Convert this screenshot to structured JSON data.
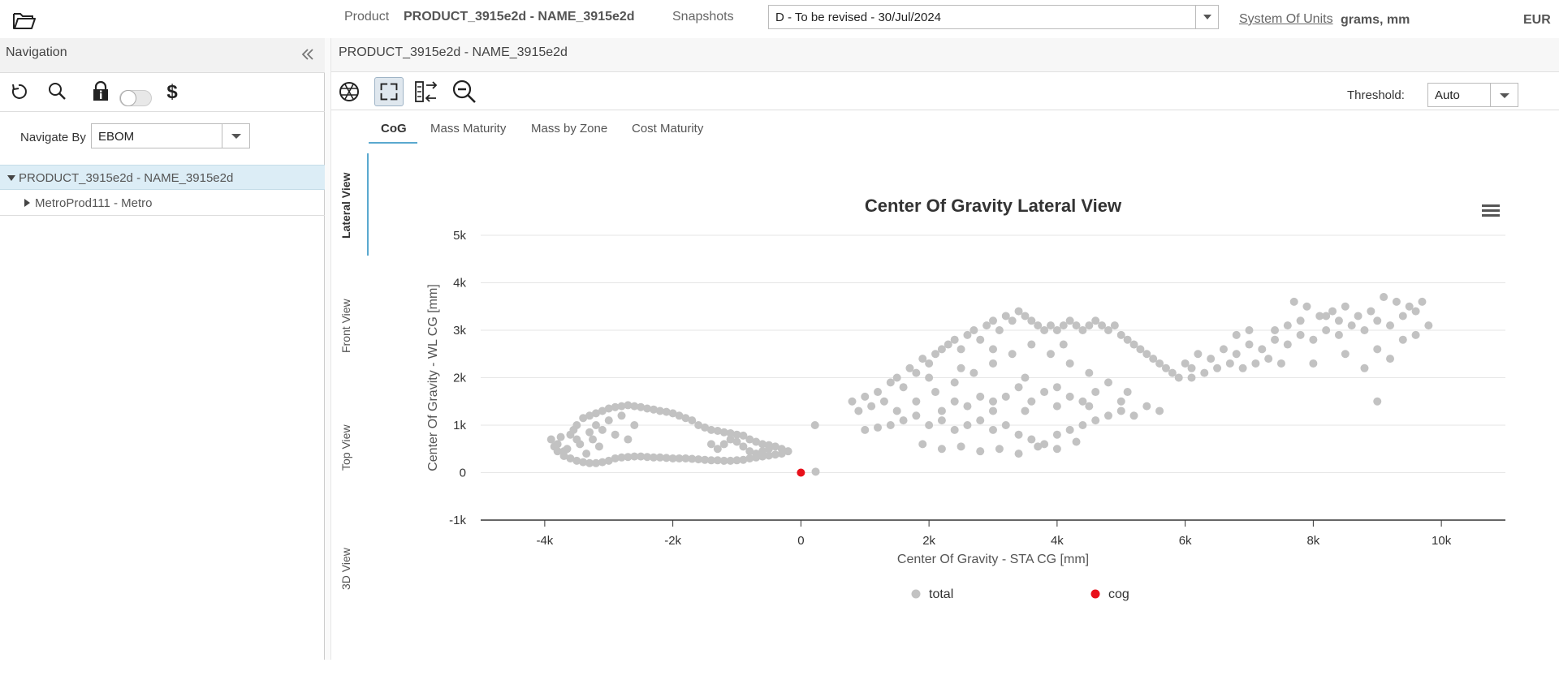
{
  "topbar": {
    "product_label": "Product",
    "product_value": "PRODUCT_3915e2d - NAME_3915e2d",
    "snapshots_label": "Snapshots",
    "snapshot_value": "D - To be revised - 30/Jul/2024",
    "system_of_units_link": "System Of Units",
    "units_value": "grams, mm",
    "currency": "EUR"
  },
  "nav": {
    "title": "Navigation",
    "navigate_by_label": "Navigate By",
    "navigate_by_value": "EBOM",
    "tree": [
      {
        "label": "PRODUCT_3915e2d - NAME_3915e2d",
        "expanded": true,
        "selected": true
      },
      {
        "label": "MetroProd111 - Metro",
        "expanded": false,
        "selected": false
      }
    ]
  },
  "main": {
    "title": "PRODUCT_3915e2d - NAME_3915e2d",
    "threshold_label": "Threshold:",
    "threshold_value": "Auto",
    "tabs": [
      "CoG",
      "Mass Maturity",
      "Mass by Zone",
      "Cost Maturity"
    ],
    "active_tab": "CoG",
    "views": [
      "Lateral View",
      "Front View",
      "Top View",
      "3D View"
    ],
    "active_view": "Lateral View"
  },
  "colors": {
    "accent": "#5aa9cf",
    "total_series": "#c2c2c2",
    "cog_series": "#e8101a"
  },
  "chart_data": {
    "type": "scatter",
    "title": "Center Of Gravity Lateral View",
    "xlabel": "Center Of Gravity - STA CG [mm]",
    "ylabel": "Center Of Gravity - WL CG [mm]",
    "xlim": [
      -5000,
      11000
    ],
    "ylim": [
      -1000,
      5000
    ],
    "x_ticks": [
      -4000,
      -2000,
      0,
      2000,
      4000,
      6000,
      8000,
      10000
    ],
    "x_tick_labels": [
      "-4k",
      "-2k",
      "0",
      "2k",
      "4k",
      "6k",
      "8k",
      "10k"
    ],
    "y_ticks": [
      -1000,
      0,
      1000,
      2000,
      3000,
      4000,
      5000
    ],
    "y_tick_labels": [
      "-1k",
      "0",
      "1k",
      "2k",
      "3k",
      "4k",
      "5k"
    ],
    "grid": "horizontal",
    "legend_position": "bottom-center",
    "series": [
      {
        "name": "total",
        "points": [
          [
            -3800,
            600
          ],
          [
            -3700,
            450
          ],
          [
            -3600,
            800
          ],
          [
            -3500,
            1000
          ],
          [
            -3400,
            1150
          ],
          [
            -3300,
            1200
          ],
          [
            -3200,
            1250
          ],
          [
            -3100,
            1300
          ],
          [
            -3000,
            1350
          ],
          [
            -2900,
            1380
          ],
          [
            -2800,
            1400
          ],
          [
            -2700,
            1420
          ],
          [
            -2600,
            1400
          ],
          [
            -2500,
            1380
          ],
          [
            -2400,
            1350
          ],
          [
            -2300,
            1330
          ],
          [
            -2200,
            1300
          ],
          [
            -2100,
            1280
          ],
          [
            -2000,
            1250
          ],
          [
            -1900,
            1200
          ],
          [
            -1800,
            1150
          ],
          [
            -1700,
            1100
          ],
          [
            -1600,
            1000
          ],
          [
            -1500,
            950
          ],
          [
            -1400,
            900
          ],
          [
            -1300,
            880
          ],
          [
            -1200,
            850
          ],
          [
            -1100,
            830
          ],
          [
            -1000,
            800
          ],
          [
            -900,
            780
          ],
          [
            -800,
            700
          ],
          [
            -700,
            650
          ],
          [
            -600,
            600
          ],
          [
            -500,
            580
          ],
          [
            -400,
            550
          ],
          [
            -300,
            500
          ],
          [
            -200,
            450
          ],
          [
            -3800,
            450
          ],
          [
            -3700,
            350
          ],
          [
            -3600,
            300
          ],
          [
            -3500,
            250
          ],
          [
            -3400,
            220
          ],
          [
            -3300,
            200
          ],
          [
            -3200,
            200
          ],
          [
            -3100,
            220
          ],
          [
            -3000,
            250
          ],
          [
            -2900,
            300
          ],
          [
            -2800,
            320
          ],
          [
            -2700,
            330
          ],
          [
            -2600,
            340
          ],
          [
            -2500,
            340
          ],
          [
            -2400,
            330
          ],
          [
            -2300,
            320
          ],
          [
            -2200,
            320
          ],
          [
            -2100,
            310
          ],
          [
            -2000,
            300
          ],
          [
            -1900,
            300
          ],
          [
            -1800,
            300
          ],
          [
            -1700,
            290
          ],
          [
            -1600,
            280
          ],
          [
            -1500,
            270
          ],
          [
            -1400,
            260
          ],
          [
            -1300,
            260
          ],
          [
            -1200,
            250
          ],
          [
            -1100,
            250
          ],
          [
            -1000,
            260
          ],
          [
            -900,
            270
          ],
          [
            -800,
            300
          ],
          [
            -700,
            320
          ],
          [
            -600,
            340
          ],
          [
            -500,
            360
          ],
          [
            -400,
            380
          ],
          [
            -300,
            400
          ],
          [
            -3500,
            700
          ],
          [
            -3300,
            850
          ],
          [
            -3200,
            1000
          ],
          [
            -3100,
            900
          ],
          [
            -3000,
            1100
          ],
          [
            -2900,
            800
          ],
          [
            -2800,
            1200
          ],
          [
            -2700,
            700
          ],
          [
            -2600,
            1000
          ],
          [
            -1200,
            600
          ],
          [
            -1100,
            700
          ],
          [
            -1000,
            650
          ],
          [
            -900,
            550
          ],
          [
            -800,
            450
          ],
          [
            -700,
            400
          ],
          [
            -600,
            450
          ],
          [
            -500,
            500
          ],
          [
            -1300,
            500
          ],
          [
            -1400,
            600
          ],
          [
            -3900,
            700
          ],
          [
            -3850,
            550
          ],
          [
            -3750,
            750
          ],
          [
            -3650,
            500
          ],
          [
            -3550,
            900
          ],
          [
            -3450,
            600
          ],
          [
            -3350,
            400
          ],
          [
            -3250,
            700
          ],
          [
            -3150,
            550
          ],
          [
            230,
            20
          ],
          [
            220,
            1000
          ],
          [
            800,
            1500
          ],
          [
            900,
            1300
          ],
          [
            1000,
            1600
          ],
          [
            1100,
            1400
          ],
          [
            1200,
            1700
          ],
          [
            1300,
            1500
          ],
          [
            1400,
            1900
          ],
          [
            1500,
            2000
          ],
          [
            1600,
            1800
          ],
          [
            1700,
            2200
          ],
          [
            1800,
            2100
          ],
          [
            1900,
            2400
          ],
          [
            2000,
            2300
          ],
          [
            2100,
            2500
          ],
          [
            2200,
            2600
          ],
          [
            2300,
            2700
          ],
          [
            2400,
            2800
          ],
          [
            2500,
            2600
          ],
          [
            2600,
            2900
          ],
          [
            2700,
            3000
          ],
          [
            2800,
            2800
          ],
          [
            2900,
            3100
          ],
          [
            3000,
            3200
          ],
          [
            3100,
            3000
          ],
          [
            3200,
            3300
          ],
          [
            3300,
            3200
          ],
          [
            3400,
            3400
          ],
          [
            3500,
            3300
          ],
          [
            3600,
            3200
          ],
          [
            3700,
            3100
          ],
          [
            3800,
            3000
          ],
          [
            3900,
            3100
          ],
          [
            4000,
            3000
          ],
          [
            4100,
            3100
          ],
          [
            4200,
            3200
          ],
          [
            4300,
            3100
          ],
          [
            4400,
            3000
          ],
          [
            4500,
            3100
          ],
          [
            4600,
            3200
          ],
          [
            4700,
            3100
          ],
          [
            4800,
            3000
          ],
          [
            4900,
            3100
          ],
          [
            5000,
            2900
          ],
          [
            5100,
            2800
          ],
          [
            5200,
            2700
          ],
          [
            5300,
            2600
          ],
          [
            5400,
            2500
          ],
          [
            5500,
            2400
          ],
          [
            5600,
            2300
          ],
          [
            5700,
            2200
          ],
          [
            5800,
            2100
          ],
          [
            5900,
            2000
          ],
          [
            6000,
            2300
          ],
          [
            6100,
            2200
          ],
          [
            1000,
            900
          ],
          [
            1200,
            950
          ],
          [
            1400,
            1000
          ],
          [
            1600,
            1100
          ],
          [
            1800,
            1200
          ],
          [
            2000,
            1000
          ],
          [
            2200,
            1100
          ],
          [
            2400,
            900
          ],
          [
            2600,
            1000
          ],
          [
            2800,
            1100
          ],
          [
            3000,
            900
          ],
          [
            3200,
            1000
          ],
          [
            3400,
            800
          ],
          [
            3600,
            700
          ],
          [
            3800,
            600
          ],
          [
            4000,
            800
          ],
          [
            4200,
            900
          ],
          [
            4400,
            1000
          ],
          [
            4600,
            1100
          ],
          [
            4800,
            1200
          ],
          [
            5000,
            1300
          ],
          [
            5200,
            1200
          ],
          [
            5400,
            1400
          ],
          [
            5600,
            1300
          ],
          [
            1500,
            1300
          ],
          [
            1800,
            1500
          ],
          [
            2100,
            1700
          ],
          [
            2400,
            1900
          ],
          [
            2700,
            2100
          ],
          [
            3000,
            2300
          ],
          [
            3300,
            2500
          ],
          [
            3600,
            2700
          ],
          [
            3900,
            2500
          ],
          [
            4200,
            2300
          ],
          [
            4500,
            2100
          ],
          [
            4800,
            1900
          ],
          [
            5100,
            1700
          ],
          [
            2000,
            2000
          ],
          [
            2500,
            2200
          ],
          [
            3000,
            2600
          ],
          [
            3500,
            2000
          ],
          [
            4000,
            1800
          ],
          [
            1900,
            600
          ],
          [
            2200,
            500
          ],
          [
            2500,
            550
          ],
          [
            2800,
            450
          ],
          [
            3100,
            500
          ],
          [
            3400,
            400
          ],
          [
            3700,
            550
          ],
          [
            4000,
            500
          ],
          [
            4300,
            650
          ],
          [
            3000,
            1500
          ],
          [
            3200,
            1600
          ],
          [
            3400,
            1800
          ],
          [
            3600,
            1500
          ],
          [
            3800,
            1700
          ],
          [
            4000,
            1400
          ],
          [
            4200,
            1600
          ],
          [
            4400,
            1500
          ],
          [
            4600,
            1700
          ],
          [
            2600,
            1400
          ],
          [
            2800,
            1600
          ],
          [
            2400,
            1500
          ],
          [
            2200,
            1300
          ],
          [
            3000,
            1300
          ],
          [
            3500,
            1300
          ],
          [
            4500,
            1400
          ],
          [
            5000,
            1500
          ],
          [
            4100,
            2700
          ],
          [
            6200,
            2500
          ],
          [
            6400,
            2400
          ],
          [
            6600,
            2600
          ],
          [
            6800,
            2500
          ],
          [
            7000,
            2700
          ],
          [
            7200,
            2600
          ],
          [
            7400,
            2800
          ],
          [
            7600,
            2700
          ],
          [
            7800,
            2900
          ],
          [
            8000,
            2800
          ],
          [
            8200,
            3000
          ],
          [
            8400,
            2900
          ],
          [
            8600,
            3100
          ],
          [
            8800,
            3000
          ],
          [
            9000,
            3200
          ],
          [
            9200,
            3100
          ],
          [
            9400,
            3300
          ],
          [
            9600,
            3400
          ],
          [
            9800,
            3100
          ],
          [
            9700,
            3600
          ],
          [
            9500,
            3500
          ],
          [
            9300,
            3600
          ],
          [
            9100,
            3700
          ],
          [
            8900,
            3400
          ],
          [
            8700,
            3300
          ],
          [
            8500,
            3500
          ],
          [
            8300,
            3400
          ],
          [
            8100,
            3300
          ],
          [
            7900,
            3500
          ],
          [
            7700,
            3600
          ],
          [
            7500,
            2300
          ],
          [
            7300,
            2400
          ],
          [
            7100,
            2300
          ],
          [
            6900,
            2200
          ],
          [
            6700,
            2300
          ],
          [
            6500,
            2200
          ],
          [
            6300,
            2100
          ],
          [
            6100,
            2000
          ],
          [
            8000,
            2300
          ],
          [
            8500,
            2500
          ],
          [
            9000,
            2600
          ],
          [
            9200,
            2400
          ],
          [
            8800,
            2200
          ],
          [
            9400,
            2800
          ],
          [
            9600,
            2900
          ],
          [
            7800,
            3200
          ],
          [
            8200,
            3300
          ],
          [
            8400,
            3200
          ],
          [
            7600,
            3100
          ],
          [
            7400,
            3000
          ],
          [
            6800,
            2900
          ],
          [
            7000,
            3000
          ],
          [
            9000,
            1500
          ]
        ]
      },
      {
        "name": "cog",
        "points": [
          [
            0,
            0
          ]
        ]
      }
    ]
  }
}
